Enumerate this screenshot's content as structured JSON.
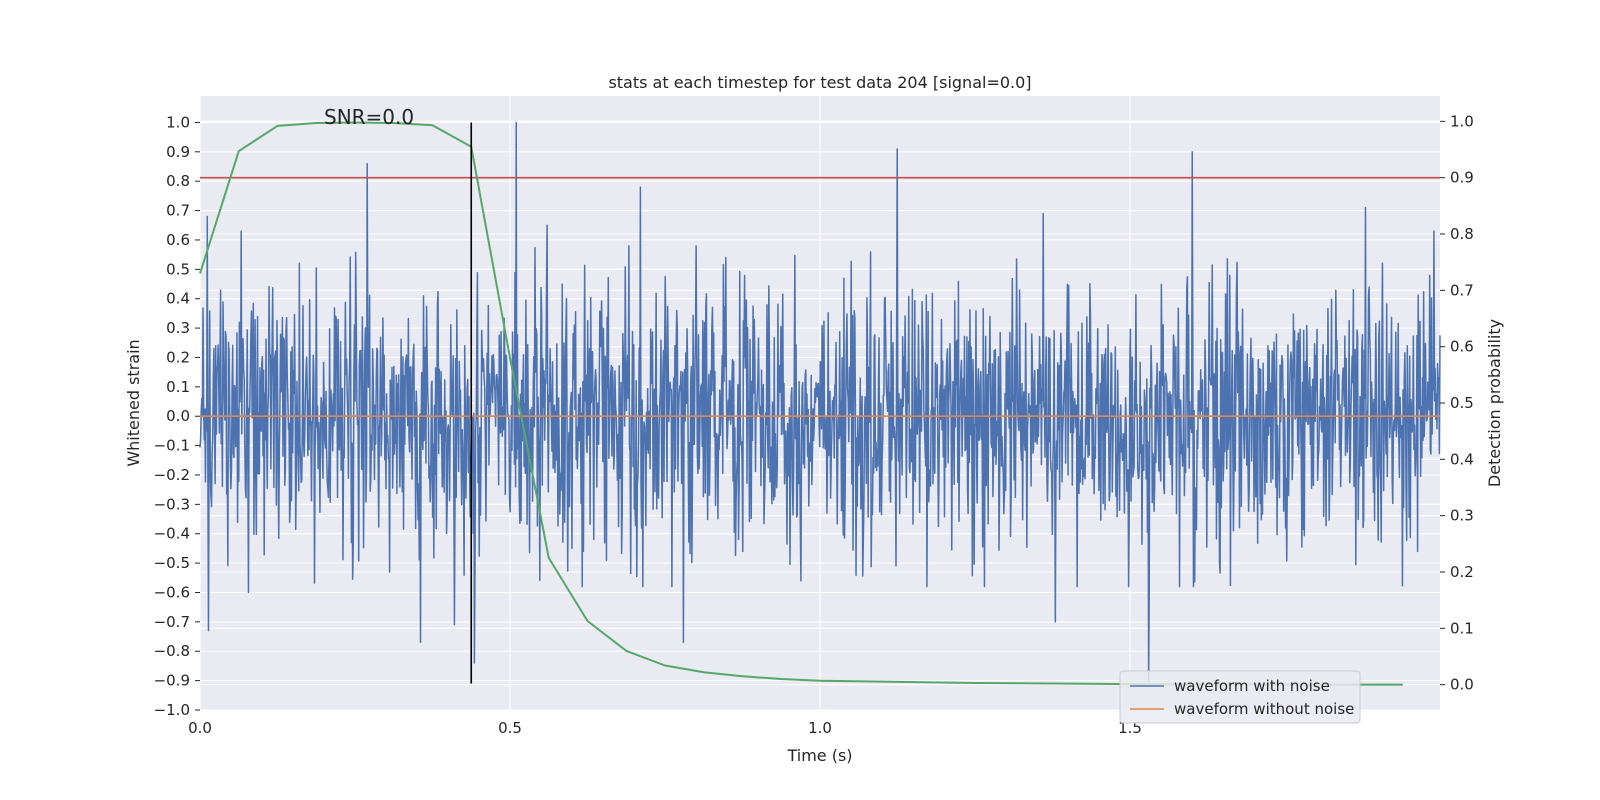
{
  "chart_data": {
    "type": "line",
    "title": "stats at each timestep for test data 204 [signal=0.0]",
    "xlabel": "Time (s)",
    "ylabel": "Whitened strain",
    "y2label": "Detection probability",
    "xlim": [
      0.0,
      2.0
    ],
    "ylim": [
      -1.0,
      1.09
    ],
    "y2lim": [
      -0.045,
      1.045
    ],
    "xticks": [
      0.0,
      0.5,
      1.0,
      1.5
    ],
    "xtick_labels": [
      "0.0",
      "0.5",
      "1.0",
      "1.5"
    ],
    "yticks": [
      -1.0,
      -0.9,
      -0.8,
      -0.7,
      -0.6,
      -0.5,
      -0.4,
      -0.3,
      -0.2,
      -0.1,
      0.0,
      0.1,
      0.2,
      0.3,
      0.4,
      0.5,
      0.6,
      0.7,
      0.8,
      0.9,
      1.0
    ],
    "ytick_labels": [
      "−1.0",
      "−0.9",
      "−0.8",
      "−0.7",
      "−0.6",
      "−0.5",
      "−0.4",
      "−0.3",
      "−0.2",
      "−0.1",
      "0.0",
      "0.1",
      "0.2",
      "0.3",
      "0.4",
      "0.5",
      "0.6",
      "0.7",
      "0.8",
      "0.9",
      "1.0"
    ],
    "y2ticks": [
      0.0,
      0.1,
      0.2,
      0.3,
      0.4,
      0.5,
      0.6,
      0.7,
      0.8,
      0.9,
      1.0
    ],
    "y2tick_labels": [
      "0.0",
      "0.1",
      "0.2",
      "0.3",
      "0.4",
      "0.5",
      "0.6",
      "0.7",
      "0.8",
      "0.9",
      "1.0"
    ],
    "grid": true,
    "annotation": {
      "text": "SNR=0.0",
      "x": 0.2,
      "y": 1.0
    },
    "series": [
      {
        "name": "waveform with noise",
        "axis": "left",
        "color": "#4c72b0",
        "generator": "noise",
        "samples": 2048,
        "x_start": 0.0,
        "x_end": 2.0,
        "std": 0.22,
        "peaks": [
          {
            "x": 0.012,
            "y": 0.68
          },
          {
            "x": 0.014,
            "y": -0.73
          },
          {
            "x": 0.066,
            "y": 0.63
          },
          {
            "x": 0.078,
            "y": -0.6
          },
          {
            "x": 0.27,
            "y": 0.86
          },
          {
            "x": 0.356,
            "y": -0.77
          },
          {
            "x": 0.41,
            "y": -0.71
          },
          {
            "x": 0.443,
            "y": -0.84
          },
          {
            "x": 0.51,
            "y": 1.0
          },
          {
            "x": 0.56,
            "y": 0.65
          },
          {
            "x": 0.71,
            "y": 0.78
          },
          {
            "x": 0.78,
            "y": -0.77
          },
          {
            "x": 1.125,
            "y": 0.91
          },
          {
            "x": 1.36,
            "y": 0.69
          },
          {
            "x": 1.38,
            "y": -0.7
          },
          {
            "x": 1.53,
            "y": -0.9
          },
          {
            "x": 1.6,
            "y": 0.9
          },
          {
            "x": 1.88,
            "y": 0.71
          },
          {
            "x": 1.99,
            "y": 0.63
          }
        ]
      },
      {
        "name": "waveform without noise",
        "axis": "left",
        "color": "#dd8452",
        "x": [
          0.0,
          2.0
        ],
        "y": [
          0.0,
          0.0
        ]
      },
      {
        "name": "detection probability",
        "axis": "right",
        "color": "#55a868",
        "x": [
          0.0,
          0.0625,
          0.125,
          0.1875,
          0.25,
          0.3125,
          0.375,
          0.4375,
          0.5,
          0.5625,
          0.625,
          0.6875,
          0.75,
          0.8125,
          0.875,
          0.9375,
          1.0,
          1.125,
          1.25,
          1.375,
          1.5,
          1.625,
          1.75,
          1.875,
          1.94
        ],
        "y": [
          0.73,
          0.947,
          0.992,
          0.997,
          0.998,
          0.997,
          0.993,
          0.955,
          0.58,
          0.225,
          0.113,
          0.06,
          0.034,
          0.022,
          0.015,
          0.01,
          0.007,
          0.005,
          0.003,
          0.002,
          0.001,
          0.001,
          0.0,
          0.0,
          0.0
        ]
      },
      {
        "name": "threshold",
        "axis": "right",
        "color": "#c44e52",
        "x": [
          0.0,
          2.0
        ],
        "y": [
          0.9,
          0.9
        ]
      },
      {
        "name": "detection marker",
        "axis": "left",
        "color": "#000000",
        "x": [
          0.4375,
          0.4375
        ],
        "y": [
          -0.91,
          1.0
        ]
      }
    ],
    "legend": {
      "location": "lower-right",
      "entries": [
        {
          "label": "waveform with noise",
          "color": "#4c72b0"
        },
        {
          "label": "waveform without noise",
          "color": "#dd8452"
        }
      ]
    }
  }
}
